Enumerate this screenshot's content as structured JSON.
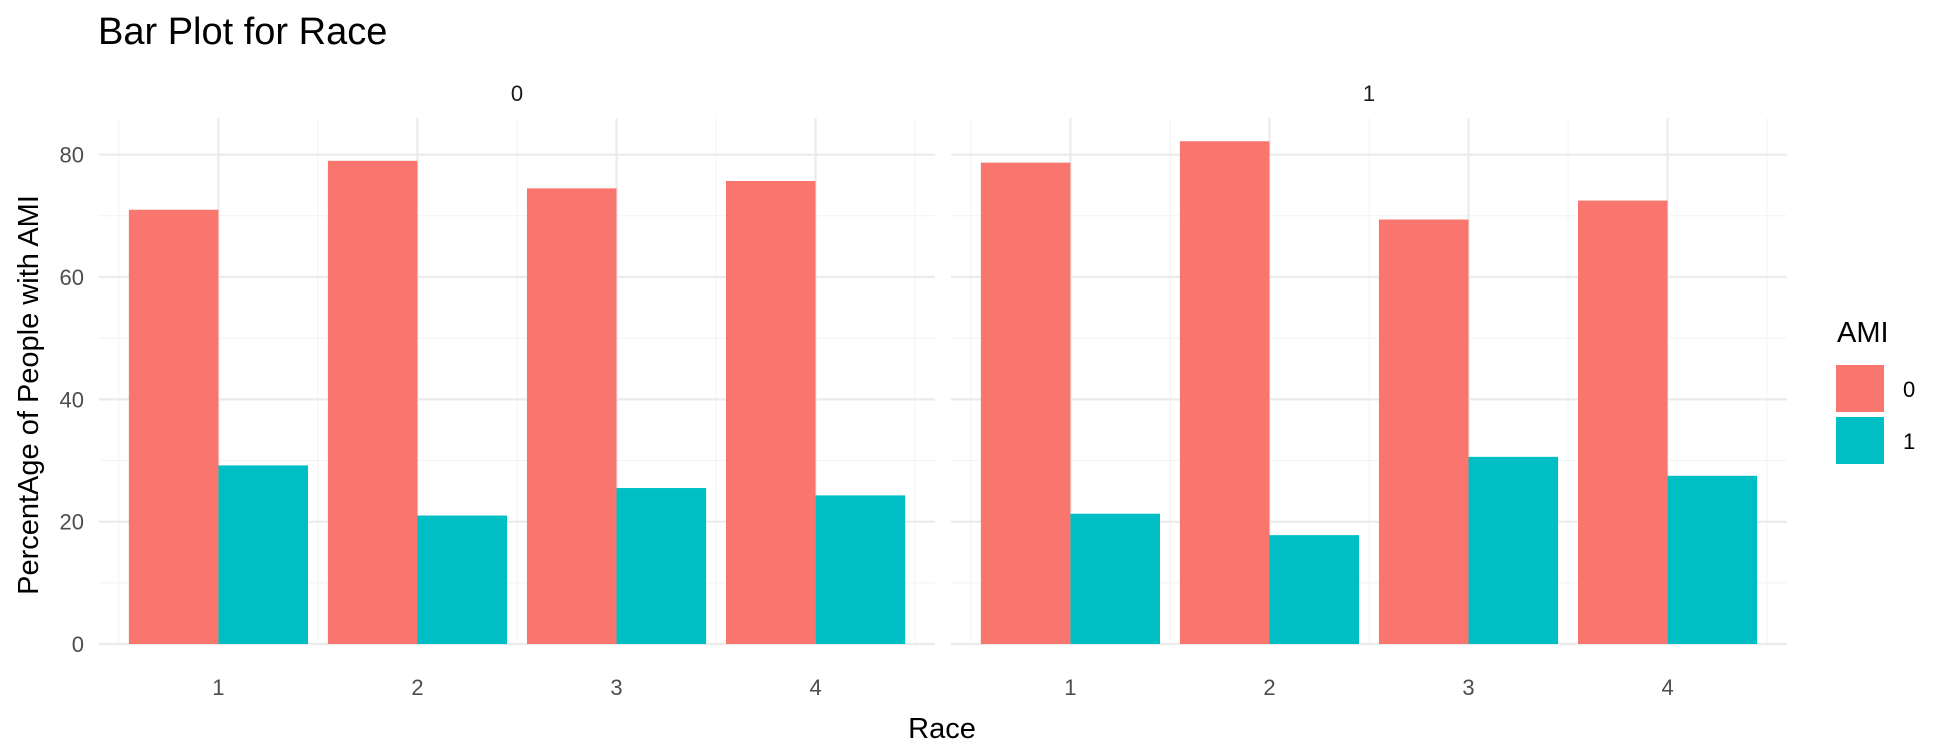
{
  "chart_data": {
    "type": "bar",
    "title": "Bar Plot for Race",
    "xlabel": "Race",
    "ylabel": "PercentAge of People with AMI",
    "ylim": [
      0,
      86
    ],
    "yticks": [
      0,
      20,
      40,
      60,
      80
    ],
    "categories": [
      "1",
      "2",
      "3",
      "4"
    ],
    "grid": true,
    "legend": {
      "title": "AMI",
      "position": "right",
      "entries": [
        "0",
        "1"
      ]
    },
    "colors": {
      "0": "#F8766D",
      "1": "#00BFC4"
    },
    "facets": [
      {
        "label": "0",
        "series": [
          {
            "name": "0",
            "values": [
              71,
              79,
              74.5,
              75.7
            ]
          },
          {
            "name": "1",
            "values": [
              29.2,
              21,
              25.5,
              24.3
            ]
          }
        ]
      },
      {
        "label": "1",
        "series": [
          {
            "name": "0",
            "values": [
              78.7,
              82.2,
              69.4,
              72.5
            ]
          },
          {
            "name": "1",
            "values": [
              21.3,
              17.8,
              30.6,
              27.5
            ]
          }
        ]
      }
    ]
  }
}
